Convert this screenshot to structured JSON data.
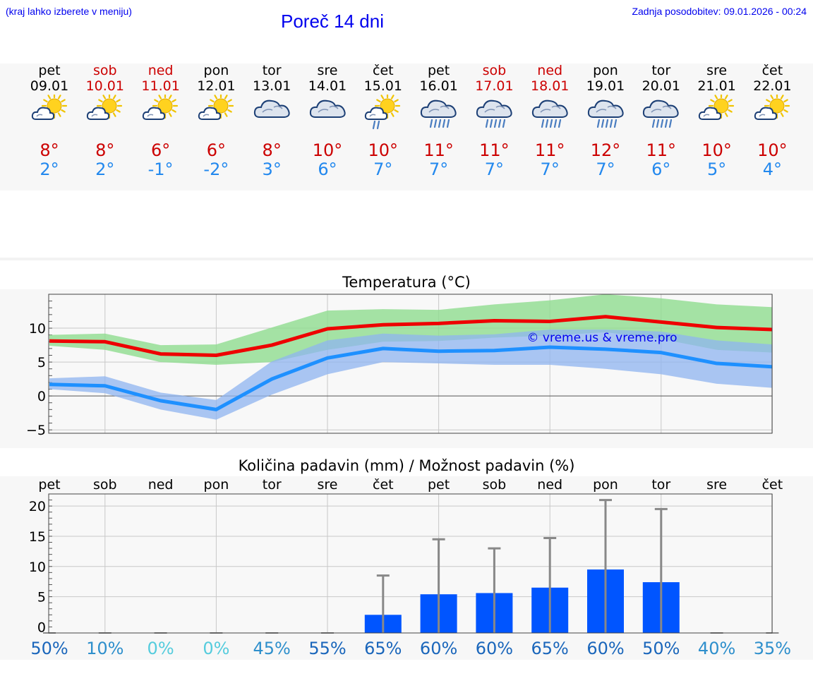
{
  "header": {
    "hint": "(kraj lahko izberete v meniju)",
    "title": "Poreč 14 dni",
    "updated": "Zadnja posodobitev: 09.01.2026 - 00:24"
  },
  "days": [
    {
      "name": "pet",
      "date": "09.01",
      "weekend": false,
      "icon": "partly-cloudy-icon",
      "hi": "8°",
      "lo": "2°"
    },
    {
      "name": "sob",
      "date": "10.01",
      "weekend": true,
      "icon": "partly-cloudy-icon",
      "hi": "8°",
      "lo": "2°"
    },
    {
      "name": "ned",
      "date": "11.01",
      "weekend": true,
      "icon": "partly-cloudy-icon",
      "hi": "6°",
      "lo": "-1°"
    },
    {
      "name": "pon",
      "date": "12.01",
      "weekend": false,
      "icon": "partly-cloudy-icon",
      "hi": "6°",
      "lo": "-2°"
    },
    {
      "name": "tor",
      "date": "13.01",
      "weekend": false,
      "icon": "cloudy-icon",
      "hi": "8°",
      "lo": "3°"
    },
    {
      "name": "sre",
      "date": "14.01",
      "weekend": false,
      "icon": "cloudy-icon",
      "hi": "10°",
      "lo": "6°"
    },
    {
      "name": "čet",
      "date": "15.01",
      "weekend": false,
      "icon": "sun-shower-icon",
      "hi": "10°",
      "lo": "7°"
    },
    {
      "name": "pet",
      "date": "16.01",
      "weekend": false,
      "icon": "rain-icon",
      "hi": "11°",
      "lo": "7°"
    },
    {
      "name": "sob",
      "date": "17.01",
      "weekend": true,
      "icon": "rain-icon",
      "hi": "11°",
      "lo": "7°"
    },
    {
      "name": "ned",
      "date": "18.01",
      "weekend": true,
      "icon": "rain-icon",
      "hi": "11°",
      "lo": "7°"
    },
    {
      "name": "pon",
      "date": "19.01",
      "weekend": false,
      "icon": "rain-icon",
      "hi": "12°",
      "lo": "7°"
    },
    {
      "name": "tor",
      "date": "20.01",
      "weekend": false,
      "icon": "rain-icon",
      "hi": "11°",
      "lo": "6°"
    },
    {
      "name": "sre",
      "date": "21.01",
      "weekend": false,
      "icon": "partly-cloudy-icon",
      "hi": "10°",
      "lo": "5°"
    },
    {
      "name": "čet",
      "date": "22.01",
      "weekend": false,
      "icon": "partly-cloudy-icon",
      "hi": "10°",
      "lo": "4°"
    }
  ],
  "colors": {
    "max_line": "#ee0000",
    "max_band": "#8edc8e",
    "min_line": "#1e90ff",
    "min_band": "#8fb4f0",
    "bar": "#0055ff",
    "whisker": "#888888",
    "weekend": "#cc0000"
  },
  "chart_data": [
    {
      "type": "line",
      "title": "Temperatura (°C)",
      "watermark": "© vreme.us & vreme.pro",
      "categories": [
        "09.01",
        "10.01",
        "11.01",
        "12.01",
        "13.01",
        "14.01",
        "15.01",
        "16.01",
        "17.01",
        "18.01",
        "19.01",
        "20.01",
        "21.01",
        "22.01"
      ],
      "ylim": [
        -5.5,
        15
      ],
      "yticks": [
        -5,
        0,
        5,
        10
      ],
      "series": [
        {
          "name": "max",
          "values": [
            8.1,
            8.0,
            6.2,
            6.0,
            7.5,
            9.9,
            10.5,
            10.7,
            11.1,
            11.0,
            11.7,
            10.9,
            10.1,
            9.8
          ],
          "band_low": [
            7.4,
            6.8,
            5.0,
            4.6,
            5.0,
            6.8,
            8.0,
            8.1,
            8.6,
            8.9,
            9.4,
            8.4,
            6.8,
            6.4
          ],
          "band_high": [
            9.0,
            9.2,
            7.5,
            7.6,
            10.1,
            12.6,
            12.8,
            12.7,
            13.5,
            14.1,
            15.0,
            14.4,
            13.5,
            13.1
          ]
        },
        {
          "name": "min",
          "values": [
            1.7,
            1.5,
            -0.7,
            -2.0,
            2.5,
            5.6,
            7.0,
            6.6,
            6.7,
            7.2,
            6.9,
            6.4,
            4.8,
            4.3
          ],
          "band_low": [
            1.0,
            0.4,
            -2.0,
            -3.5,
            0.2,
            3.2,
            5.0,
            4.8,
            4.6,
            4.6,
            4.0,
            3.2,
            1.8,
            1.2
          ],
          "band_high": [
            2.6,
            2.9,
            0.5,
            -0.6,
            5.1,
            8.2,
            9.2,
            8.9,
            9.1,
            9.8,
            9.8,
            9.5,
            8.2,
            7.6
          ]
        }
      ]
    },
    {
      "type": "bar",
      "title": "Količina padavin (mm) / Možnost padavin (%)",
      "categories": [
        "pet",
        "sob",
        "ned",
        "pon",
        "tor",
        "sre",
        "čet",
        "pet",
        "sob",
        "ned",
        "pon",
        "tor",
        "sre",
        "čet"
      ],
      "values": [
        0,
        0,
        0,
        0,
        0,
        0,
        2,
        5.4,
        5.6,
        6.5,
        9.5,
        7.4,
        0,
        0
      ],
      "upper": [
        0,
        0,
        0,
        0,
        0,
        0,
        8.5,
        14.5,
        13,
        14.7,
        21,
        19.5,
        0,
        0
      ],
      "ylim": [
        -1,
        22
      ],
      "yticks": [
        0,
        5,
        10,
        15,
        20
      ],
      "chance": [
        "50%",
        "10%",
        "0%",
        "0%",
        "45%",
        "55%",
        "65%",
        "60%",
        "60%",
        "65%",
        "60%",
        "50%",
        "40%",
        "35%"
      ],
      "chance_colors": [
        "#1a66bb",
        "#2e8fcc",
        "#55ccdd",
        "#55ccdd",
        "#2e8fcc",
        "#1a66bb",
        "#1a66bb",
        "#1a66bb",
        "#1a66bb",
        "#1a66bb",
        "#1a66bb",
        "#1a66bb",
        "#2e8fcc",
        "#2e8fcc"
      ]
    }
  ]
}
